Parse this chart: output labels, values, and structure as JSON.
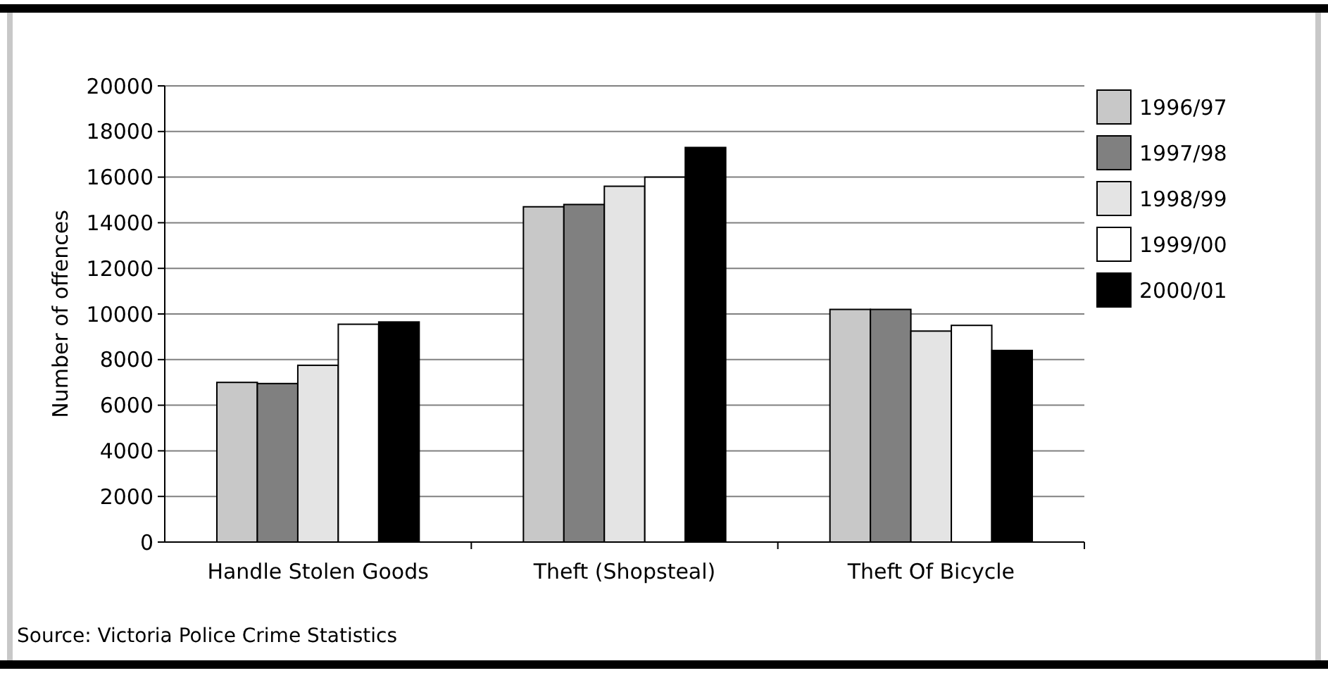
{
  "chart_data": {
    "type": "bar",
    "ylabel": "Number of offences",
    "categories": [
      "Handle Stolen Goods",
      "Theft (Shopsteal)",
      "Theft Of Bicycle"
    ],
    "series": [
      {
        "name": "1996/97",
        "color": "#c8c8c8",
        "values": [
          7000,
          14700,
          10200
        ]
      },
      {
        "name": "1997/98",
        "color": "#808080",
        "values": [
          6950,
          14800,
          10200
        ]
      },
      {
        "name": "1998/99",
        "color": "#e4e4e4",
        "values": [
          7750,
          15600,
          9250
        ]
      },
      {
        "name": "1999/00",
        "color": "#ffffff",
        "values": [
          9550,
          16000,
          9500
        ]
      },
      {
        "name": "2000/01",
        "color": "#000000",
        "values": [
          9650,
          17300,
          8400
        ]
      }
    ],
    "ylim": [
      0,
      20000
    ],
    "yticks": [
      0,
      2000,
      4000,
      6000,
      8000,
      10000,
      12000,
      14000,
      16000,
      18000,
      20000
    ],
    "grid": "y",
    "legend": "right",
    "annotations": [
      "Source: Victoria Police Crime Statistics"
    ]
  }
}
